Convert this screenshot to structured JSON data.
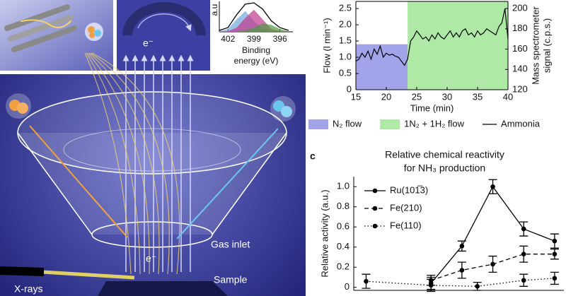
{
  "illustration": {
    "electron_labels": [
      "e⁻",
      "e⁻"
    ],
    "gas_inlet": "Gas inlet",
    "sample": "Sample",
    "xrays": "X-rays"
  },
  "chart_data": [
    {
      "type": "line",
      "ylabel": "a.u",
      "xlabel": [
        "Binding",
        "energy (eV)"
      ],
      "x": [
        403,
        402,
        401,
        400,
        399,
        398,
        397,
        396,
        395
      ],
      "xlim": [
        403,
        394.5
      ],
      "xticks": [
        402,
        399,
        396
      ],
      "ylim": [
        0,
        1.1
      ],
      "series": [
        {
          "color": "#6fa8dc",
          "fill": true,
          "values": [
            0.02,
            0.1,
            0.45,
            0.75,
            0.4,
            0.1,
            0.02,
            0,
            0
          ]
        },
        {
          "color": "#c0398c",
          "fill": true,
          "values": [
            0,
            0.02,
            0.15,
            0.5,
            0.8,
            0.45,
            0.1,
            0.02,
            0
          ]
        },
        {
          "color": "#4e9a3e",
          "fill": true,
          "values": [
            0,
            0,
            0,
            0.05,
            0.15,
            0.3,
            0.25,
            0.1,
            0.02
          ]
        },
        {
          "color": "#000000",
          "values": [
            0.05,
            0.15,
            0.62,
            1.0,
            1.05,
            0.82,
            0.4,
            0.15,
            0.05
          ]
        }
      ]
    },
    {
      "type": "line",
      "frame": true,
      "legend": "below",
      "xlabel": "Time (min)",
      "ylabel": "Flow (l min⁻¹)",
      "y2label": [
        "Mass spectrometer",
        "signal (c.p.s.)"
      ],
      "x": [
        15,
        15.5,
        16,
        16.5,
        17,
        17.5,
        18,
        18.5,
        19,
        19.5,
        20,
        20.5,
        21,
        21.5,
        22,
        22.5,
        23,
        23.5,
        24,
        24.5,
        25,
        25.5,
        26,
        26.5,
        27,
        27.5,
        28,
        28.5,
        29,
        29.5,
        30,
        30.5,
        31,
        31.5,
        32,
        32.5,
        33,
        33.5,
        34,
        34.5,
        35,
        35.5,
        36,
        36.5,
        37,
        37.5,
        38,
        38.5,
        39,
        39.5,
        40
      ],
      "xlim": [
        15,
        40
      ],
      "xticks": [
        15,
        20,
        25,
        30,
        35,
        40
      ],
      "ylim": [
        0,
        2.72
      ],
      "yticks": [
        0,
        0.5,
        {
          "value": 1,
          "label": "1.0"
        },
        1.5,
        {
          "value": 2,
          "label": "2.0"
        },
        2.5
      ],
      "y2lim": [
        120,
        207
      ],
      "y2ticks": [
        120,
        140,
        160,
        180,
        200
      ],
      "regions": [
        {
          "name": "N₂ flow",
          "color": "#a3a3ea",
          "x": [
            15,
            23.5
          ],
          "y": [
            0,
            1.4
          ]
        },
        {
          "name": "1N₂ + 1H₂ flow",
          "color": "#aeeaa6",
          "x": [
            23.5,
            40
          ]
        }
      ],
      "series": [
        {
          "name": "Ammonia",
          "color": "#000000",
          "axis": "y2",
          "values": [
            148,
            150,
            156,
            152,
            158,
            150,
            160,
            155,
            163,
            152,
            156,
            154,
            155,
            153,
            152,
            148,
            144,
            150,
            168,
            172,
            178,
            174,
            170,
            172,
            168,
            174,
            170,
            176,
            172,
            170,
            174,
            178,
            172,
            176,
            172,
            178,
            180,
            174,
            176,
            172,
            178,
            174,
            176,
            180,
            178,
            176,
            174,
            182,
            186,
            200,
            170
          ]
        }
      ]
    },
    {
      "type": "line",
      "panel": "c",
      "legend": "upper left",
      "title": [
        "Relative chemical reactivity",
        "for NH₃ production"
      ],
      "ylabel": "Relative activity (a.u.)",
      "xlim": [
        -0.4,
        6.4
      ],
      "ylim": [
        -0.03,
        1.1
      ],
      "yticks": [
        0,
        0.2,
        0.4,
        0.6,
        0.8,
        {
          "value": 1,
          "label": "1.0"
        }
      ],
      "series": [
        {
          "name": "Ru(101̅3)",
          "color": "#000000",
          "linestyle": "solid",
          "marker": "o",
          "x": [
            2.1,
            3.1,
            4.1,
            5.1,
            6.1
          ],
          "values": [
            0.04,
            0.41,
            1,
            0.58,
            0.46
          ],
          "errors": [
            0.06,
            0.05,
            0.07,
            0.07,
            0.07
          ]
        },
        {
          "name": "Fe(210)",
          "color": "#000000",
          "linestyle": "dashed",
          "marker": "o",
          "x": [
            2.1,
            3.1,
            4.1,
            5.1,
            6.1
          ],
          "values": [
            0.07,
            0.17,
            0.23,
            0.33,
            0.33
          ],
          "errors": [
            0.05,
            0.08,
            0.08,
            0.08,
            0.05
          ]
        },
        {
          "name": "Fe(110)",
          "color": "#000000",
          "linestyle": "dotted",
          "marker": "o",
          "x": [
            0,
            2.1,
            3.6,
            5.1,
            6.1
          ],
          "values": [
            0.06,
            0.02,
            0.01,
            0.07,
            0.09
          ],
          "errors": [
            0.07,
            0.06,
            0.04,
            0.06,
            0.06
          ]
        }
      ]
    }
  ]
}
